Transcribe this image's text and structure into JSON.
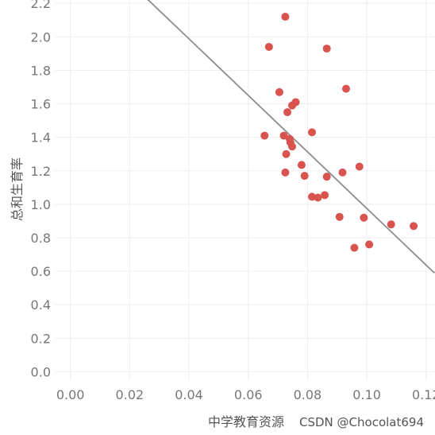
{
  "chart_data": {
    "type": "scatter",
    "xlabel": "中学教育资源",
    "ylabel": "总和生育率",
    "xlim": [
      -0.005,
      0.123
    ],
    "ylim": [
      -0.05,
      2.22
    ],
    "x_ticks": [
      "0.00",
      "0.02",
      "0.04",
      "0.06",
      "0.08",
      "0.10",
      "0.12"
    ],
    "x_tick_values": [
      0.0,
      0.02,
      0.04,
      0.06,
      0.08,
      0.1,
      0.12
    ],
    "y_ticks": [
      "0.0",
      "0.2",
      "0.4",
      "0.6",
      "0.8",
      "1.0",
      "1.2",
      "1.4",
      "1.6",
      "1.8",
      "2.0",
      "2.2"
    ],
    "y_tick_values": [
      0.0,
      0.2,
      0.4,
      0.6,
      0.8,
      1.0,
      1.2,
      1.4,
      1.6,
      1.8,
      2.0,
      2.2
    ],
    "grid": true,
    "trendline": {
      "start": [
        0.0245,
        2.25
      ],
      "end": [
        0.1228,
        0.59
      ]
    },
    "point_color": "#d9534f",
    "points": [
      {
        "x": 0.0725,
        "y": 2.12
      },
      {
        "x": 0.067,
        "y": 1.94
      },
      {
        "x": 0.0865,
        "y": 1.93
      },
      {
        "x": 0.0705,
        "y": 1.67
      },
      {
        "x": 0.093,
        "y": 1.69
      },
      {
        "x": 0.076,
        "y": 1.61
      },
      {
        "x": 0.0748,
        "y": 1.59
      },
      {
        "x": 0.0732,
        "y": 1.55
      },
      {
        "x": 0.0815,
        "y": 1.43
      },
      {
        "x": 0.0655,
        "y": 1.41
      },
      {
        "x": 0.072,
        "y": 1.41
      },
      {
        "x": 0.074,
        "y": 1.39
      },
      {
        "x": 0.0742,
        "y": 1.37
      },
      {
        "x": 0.0748,
        "y": 1.345
      },
      {
        "x": 0.0728,
        "y": 1.3
      },
      {
        "x": 0.078,
        "y": 1.235
      },
      {
        "x": 0.0975,
        "y": 1.225
      },
      {
        "x": 0.0725,
        "y": 1.19
      },
      {
        "x": 0.0918,
        "y": 1.19
      },
      {
        "x": 0.079,
        "y": 1.17
      },
      {
        "x": 0.0865,
        "y": 1.165
      },
      {
        "x": 0.0858,
        "y": 1.055
      },
      {
        "x": 0.0815,
        "y": 1.045
      },
      {
        "x": 0.0835,
        "y": 1.04
      },
      {
        "x": 0.0908,
        "y": 0.925
      },
      {
        "x": 0.099,
        "y": 0.92
      },
      {
        "x": 0.1082,
        "y": 0.88
      },
      {
        "x": 0.1158,
        "y": 0.87
      },
      {
        "x": 0.1008,
        "y": 0.76
      },
      {
        "x": 0.0958,
        "y": 0.74
      }
    ]
  },
  "watermark": "CSDN @Chocolat694"
}
